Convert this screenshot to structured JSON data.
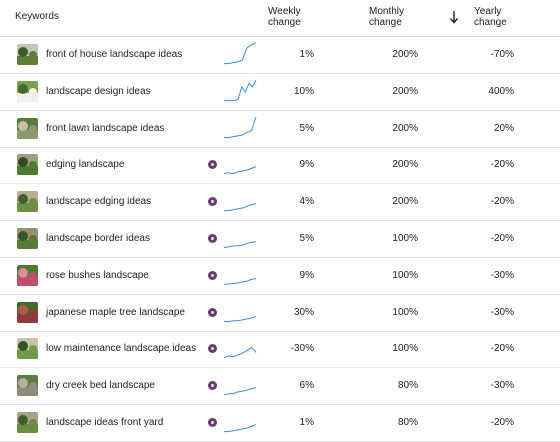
{
  "header": {
    "keywords": "Keywords",
    "weekly": [
      "Weekly",
      "change"
    ],
    "monthly": [
      "Monthly",
      "change"
    ],
    "yearly": [
      "Yearly",
      "change"
    ]
  },
  "rows": [
    {
      "keyword": "front of house landscape ideas",
      "weekly": "1%",
      "monthly": "200%",
      "yearly": "-70%",
      "badge": false,
      "thumb": [
        "#5f7a3b",
        "#c8c4b6",
        "#3d5a2a"
      ],
      "spark": [
        2,
        2,
        2.5,
        3,
        4,
        11,
        13,
        14
      ]
    },
    {
      "keyword": "landscape design ideas",
      "weekly": "10%",
      "monthly": "200%",
      "yearly": "400%",
      "badge": false,
      "thumb": [
        "#f2f2ea",
        "#7aa04d",
        "#3e6b2c"
      ],
      "spark": [
        2,
        2,
        2,
        2,
        3,
        10,
        7,
        12,
        10,
        14
      ]
    },
    {
      "keyword": "front lawn landscape ideas",
      "weekly": "5%",
      "monthly": "200%",
      "yearly": "20%",
      "badge": false,
      "thumb": [
        "#8a9a6a",
        "#5c7a3a",
        "#c9bfa6"
      ],
      "spark": [
        2,
        2,
        2.5,
        3,
        3.5,
        5,
        6,
        14
      ]
    },
    {
      "keyword": "edging landscape",
      "weekly": "9%",
      "monthly": "200%",
      "yearly": "-20%",
      "badge": true,
      "thumb": [
        "#4e7b34",
        "#a79a7e",
        "#2d4f22"
      ],
      "spark": [
        2,
        2.5,
        2,
        3,
        3.5,
        4,
        5,
        6
      ]
    },
    {
      "keyword": "landscape edging ideas",
      "weekly": "4%",
      "monthly": "200%",
      "yearly": "-20%",
      "badge": true,
      "thumb": [
        "#6d8f44",
        "#b8ad93",
        "#3f6130"
      ],
      "spark": [
        2,
        2,
        2.5,
        3,
        3.5,
        4.5,
        5.5,
        6
      ]
    },
    {
      "keyword": "landscape border ideas",
      "weekly": "5%",
      "monthly": "100%",
      "yearly": "-20%",
      "badge": true,
      "thumb": [
        "#5a7a38",
        "#9c8f70",
        "#345a25"
      ],
      "spark": [
        2,
        2.5,
        3,
        3,
        3.5,
        4.5,
        5,
        5.5
      ]
    },
    {
      "keyword": "rose bushes landscape",
      "weekly": "9%",
      "monthly": "100%",
      "yearly": "-30%",
      "badge": true,
      "thumb": [
        "#c24e6a",
        "#4d7a32",
        "#e08aa0"
      ],
      "spark": [
        2,
        2.5,
        2.5,
        3,
        3.5,
        4,
        5,
        5.5
      ]
    },
    {
      "keyword": "japanese maple tree landscape",
      "weekly": "30%",
      "monthly": "100%",
      "yearly": "-30%",
      "badge": true,
      "thumb": [
        "#8e3b3b",
        "#3e6a2a",
        "#b45a4a"
      ],
      "spark": [
        2,
        2,
        2.5,
        2.5,
        3,
        3.5,
        4,
        5
      ]
    },
    {
      "keyword": "low maintenance landscape ideas",
      "weekly": "-30%",
      "monthly": "100%",
      "yearly": "-20%",
      "badge": true,
      "thumb": [
        "#6f9a4a",
        "#c7c1ac",
        "#2f5523"
      ],
      "spark": [
        2,
        3,
        2.5,
        3.5,
        4.5,
        6,
        8,
        5
      ]
    },
    {
      "keyword": "dry creek bed landscape",
      "weekly": "6%",
      "monthly": "80%",
      "yearly": "-30%",
      "badge": true,
      "thumb": [
        "#8f8a7a",
        "#5d7d3c",
        "#b7b0a0"
      ],
      "spark": [
        2,
        2.5,
        2.5,
        3.5,
        4,
        4.5,
        5.5,
        6
      ]
    },
    {
      "keyword": "landscape ideas front yard",
      "weekly": "1%",
      "monthly": "80%",
      "yearly": "-20%",
      "badge": true,
      "thumb": [
        "#6a8c40",
        "#aaa089",
        "#3a6029"
      ],
      "spark": [
        2,
        2,
        2.5,
        3,
        3.5,
        4,
        5,
        6
      ]
    }
  ],
  "colors": {
    "spark": "#3a8fd4",
    "badge": "#6a3a6e"
  },
  "icons": {
    "sort": "arrow-down-icon"
  }
}
